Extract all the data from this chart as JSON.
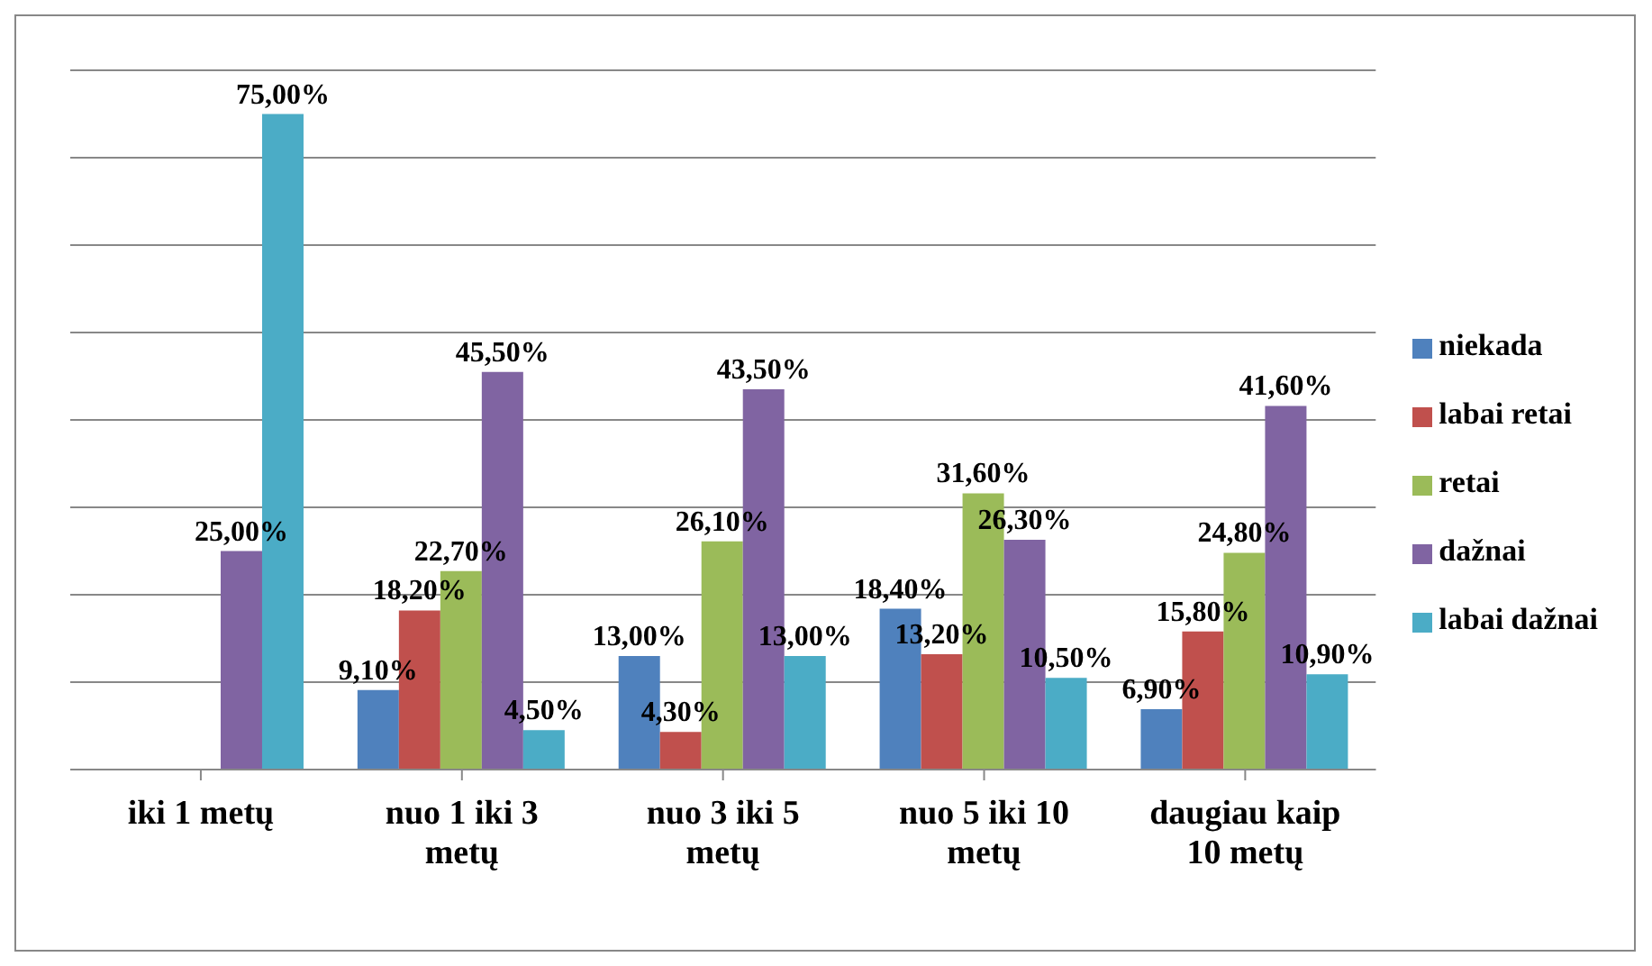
{
  "chart_data": {
    "type": "bar",
    "categories": [
      "iki 1 metų",
      "nuo 1 iki 3 metų",
      "nuo 3 iki 5 metų",
      "nuo 5 iki 10 metų",
      "daugiau kaip 10 metų"
    ],
    "series": [
      {
        "name": "niekada",
        "color": "#4f81bd",
        "values": [
          null,
          9.1,
          13.0,
          18.4,
          6.9
        ],
        "value_labels": [
          null,
          "9,10%",
          "13,00%",
          "18,40%",
          "6,90%"
        ]
      },
      {
        "name": "labai retai",
        "color": "#c0504d",
        "values": [
          null,
          18.2,
          4.3,
          13.2,
          15.8
        ],
        "value_labels": [
          null,
          "18,20%",
          "4,30%",
          "13,20%",
          "15,80%"
        ]
      },
      {
        "name": "retai",
        "color": "#9bbb59",
        "values": [
          null,
          22.7,
          26.1,
          31.6,
          24.8
        ],
        "value_labels": [
          null,
          "22,70%",
          "26,10%",
          "31,60%",
          "24,80%"
        ]
      },
      {
        "name": "dažnai",
        "color": "#8064a2",
        "values": [
          25.0,
          45.5,
          43.5,
          26.3,
          41.6
        ],
        "value_labels": [
          "25,00%",
          "45,50%",
          "43,50%",
          "26,30%",
          "41,60%"
        ]
      },
      {
        "name": "labai dažnai",
        "color": "#4bacc6",
        "values": [
          75.0,
          4.5,
          13.0,
          10.5,
          10.9
        ],
        "value_labels": [
          "75,00%",
          "4,50%",
          "13,00%",
          "10,50%",
          "10,90%"
        ]
      }
    ],
    "ylim": [
      0,
      80
    ],
    "tick_labels": "x",
    "grid": "y",
    "legend": "right"
  }
}
